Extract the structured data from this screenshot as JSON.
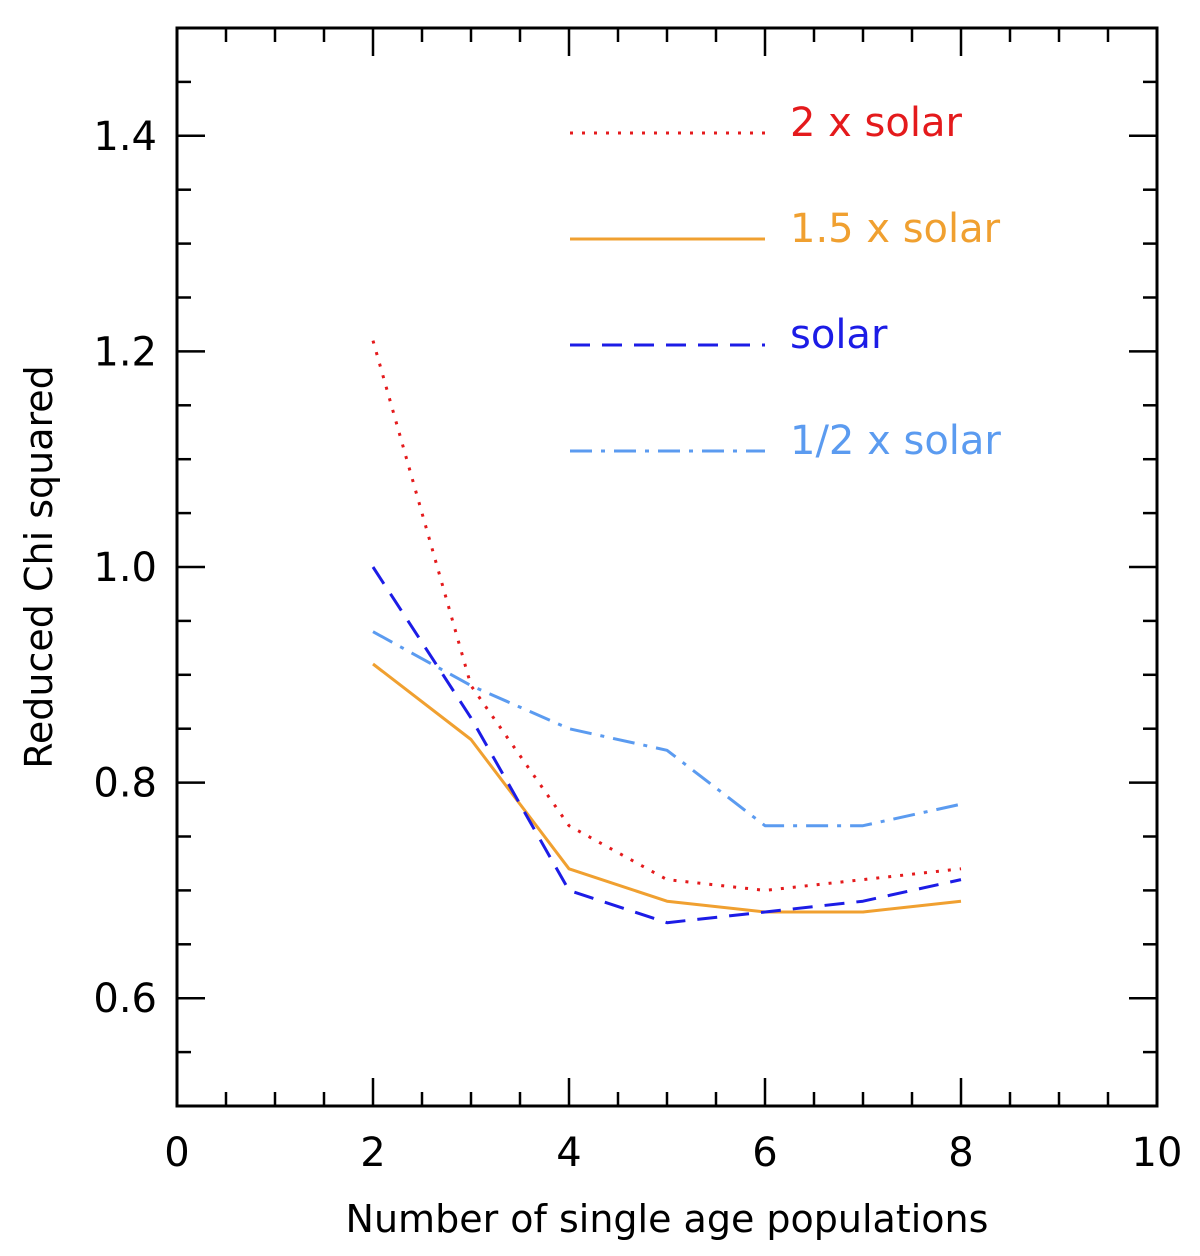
{
  "chart_data": {
    "type": "line",
    "xlabel": "Number of single age populations",
    "ylabel": "Reduced Chi squared",
    "xlim": [
      0,
      10
    ],
    "ylim": [
      0.5,
      1.5
    ],
    "x_ticks": [
      0,
      2,
      4,
      6,
      8,
      10
    ],
    "x_tick_labels": [
      "0",
      "2",
      "4",
      "6",
      "8",
      "10"
    ],
    "y_ticks": [
      0.6,
      0.8,
      1.0,
      1.2,
      1.4
    ],
    "y_tick_labels": [
      "0.6",
      "0.8",
      "1.0",
      "1.2",
      "1.4"
    ],
    "x_minor_step": 0.5,
    "y_minor_step": 0.05,
    "grid": false,
    "legend_position": "top-right",
    "series": [
      {
        "name": "2 x solar",
        "color": "#e41a1c",
        "style": "dotted",
        "x": [
          2,
          3,
          4,
          5,
          6,
          7,
          8
        ],
        "values": [
          1.21,
          0.89,
          0.76,
          0.71,
          0.7,
          0.71,
          0.72
        ]
      },
      {
        "name": "1.5 x solar",
        "color": "#f0a030",
        "style": "solid",
        "x": [
          2,
          3,
          4,
          5,
          6,
          7,
          8
        ],
        "values": [
          0.91,
          0.84,
          0.72,
          0.69,
          0.68,
          0.68,
          0.69
        ]
      },
      {
        "name": "solar",
        "color": "#1c1ce6",
        "style": "dashed",
        "x": [
          2,
          3,
          4,
          5,
          6,
          7,
          8
        ],
        "values": [
          1.0,
          0.86,
          0.7,
          0.67,
          0.68,
          0.69,
          0.71
        ]
      },
      {
        "name": "1/2 x solar",
        "color": "#5b9bf0",
        "style": "dashdot",
        "x": [
          2,
          3,
          4,
          5,
          6,
          7,
          8
        ],
        "values": [
          0.94,
          0.89,
          0.85,
          0.83,
          0.76,
          0.76,
          0.78
        ]
      }
    ]
  }
}
